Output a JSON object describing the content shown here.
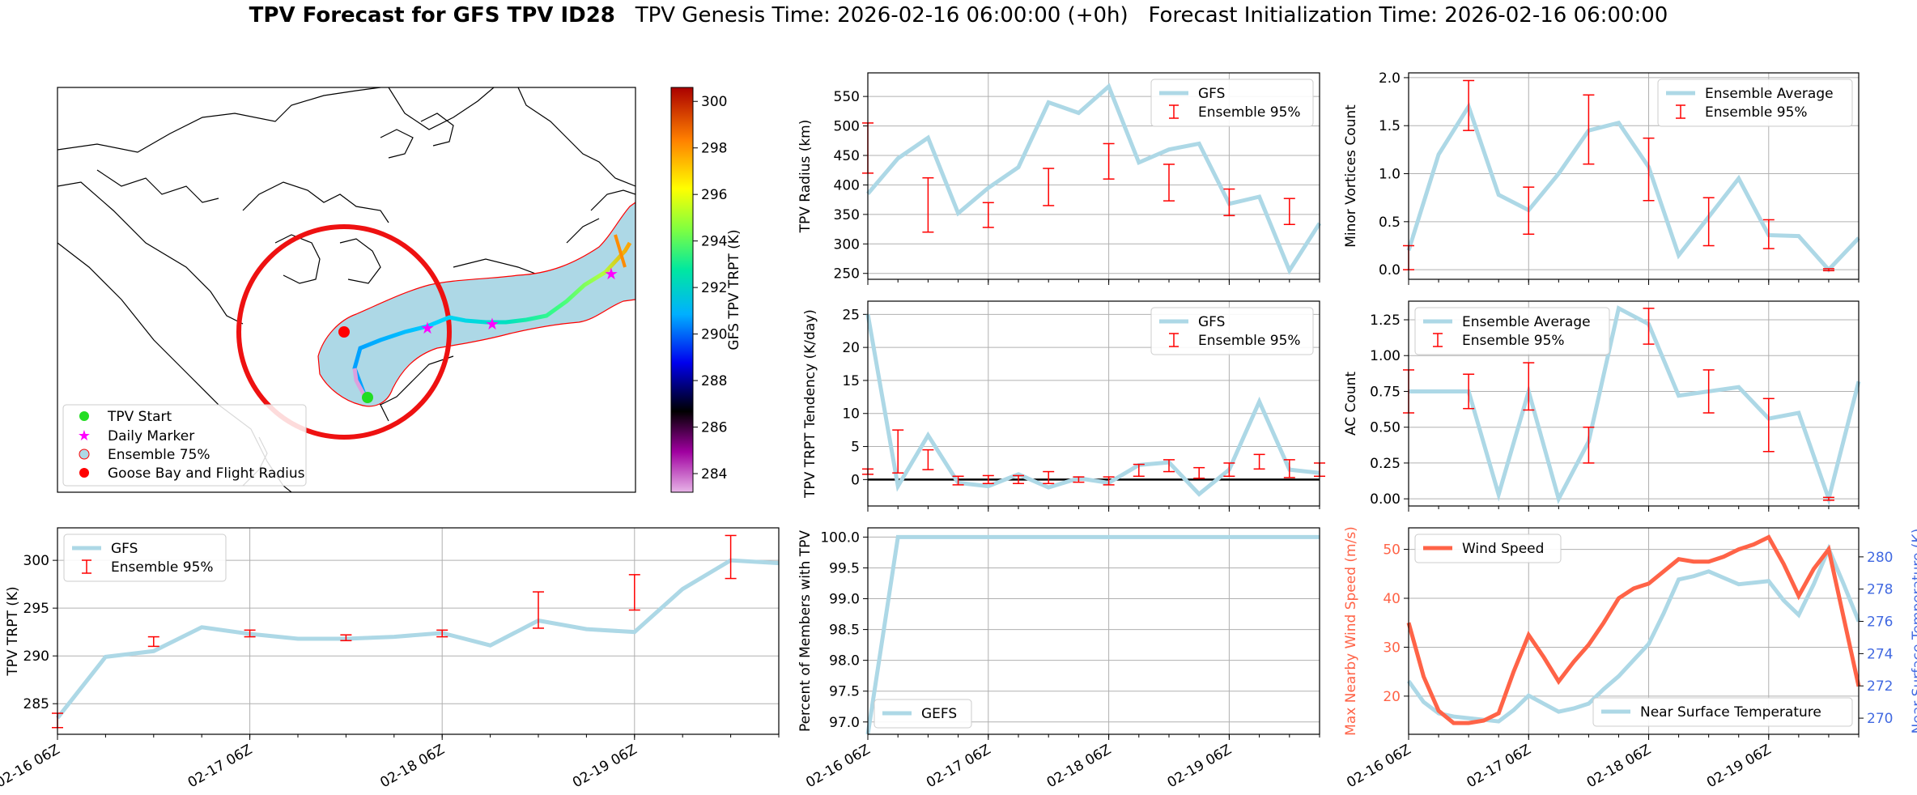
{
  "title": {
    "bold": "TPV Forecast for GFS TPV ID28",
    "genesis": "TPV Genesis Time: 2026-02-16 06:00:00 (+0h)",
    "init": "Forecast Initialization Time: 2026-02-16 06:00:00"
  },
  "colors": {
    "gfs_line": "#add8e6",
    "error_bar": "#ff0000",
    "wind": "#ff6347",
    "temp_axis": "#4169e1",
    "circle": "#ee1111",
    "fill": "#add8e6"
  },
  "time_ticks": [
    "02-16 06Z",
    "02-17 06Z",
    "02-18 06Z",
    "02-19 06Z"
  ],
  "map": {
    "colorbar_label": "GFS TPV TRPT (K)",
    "colorbar_ticks": [
      "284",
      "286",
      "288",
      "290",
      "292",
      "294",
      "296",
      "298",
      "300"
    ],
    "colorbar_range": [
      283.2,
      300.6
    ],
    "legend": [
      "TPV Start",
      "Daily Marker",
      "Ensemble 75%",
      "Goose Bay and Flight Radius"
    ]
  },
  "chart_data": [
    {
      "id": "radius",
      "type": "line",
      "ylabel": "TPV Radius (km)",
      "ylim": [
        240,
        590
      ],
      "yticks": [
        "250",
        "300",
        "350",
        "400",
        "450",
        "500",
        "550"
      ],
      "legend": [
        "GFS",
        "Ensemble 95%"
      ],
      "x": [
        0,
        0.25,
        0.5,
        0.75,
        1,
        1.25,
        1.5,
        1.75,
        2,
        2.25,
        2.5,
        2.75,
        3,
        3.25,
        3.5,
        3.75
      ],
      "series": [
        {
          "name": "GFS",
          "values": [
            385,
            445,
            480,
            352,
            395,
            430,
            540,
            522,
            567,
            438,
            460,
            470,
            368,
            380,
            255,
            335
          ]
        }
      ],
      "error_bars": [
        {
          "x": 0,
          "low": 420,
          "high": 505
        },
        {
          "x": 0.5,
          "low": 320,
          "high": 412
        },
        {
          "x": 1,
          "low": 328,
          "high": 370
        },
        {
          "x": 1.5,
          "low": 365,
          "high": 428
        },
        {
          "x": 2,
          "low": 410,
          "high": 470
        },
        {
          "x": 2.5,
          "low": 373,
          "high": 435
        },
        {
          "x": 3,
          "low": 348,
          "high": 393
        },
        {
          "x": 3.5,
          "low": 333,
          "high": 377
        }
      ]
    },
    {
      "id": "minor",
      "type": "line",
      "ylabel": "Minor Vortices Count",
      "ylim": [
        -0.1,
        2.05
      ],
      "yticks": [
        "0.0",
        "0.5",
        "1.0",
        "1.5",
        "2.0"
      ],
      "legend": [
        "Ensemble Average",
        "Ensemble 95%"
      ],
      "x": [
        0,
        0.25,
        0.5,
        0.75,
        1,
        1.25,
        1.5,
        1.75,
        2,
        2.25,
        2.5,
        2.75,
        3,
        3.25,
        3.5,
        3.75
      ],
      "series": [
        {
          "name": "Ensemble Average",
          "values": [
            0.2,
            1.2,
            1.7,
            0.78,
            0.62,
            1.0,
            1.45,
            1.53,
            1.07,
            0.15,
            0.55,
            0.95,
            0.36,
            0.35,
            0.0,
            0.33
          ]
        }
      ],
      "error_bars": [
        {
          "x": 0,
          "low": 0.0,
          "high": 0.25
        },
        {
          "x": 0.5,
          "low": 1.45,
          "high": 1.97
        },
        {
          "x": 1,
          "low": 0.37,
          "high": 0.86
        },
        {
          "x": 1.5,
          "low": 1.1,
          "high": 1.82
        },
        {
          "x": 2,
          "low": 0.72,
          "high": 1.37
        },
        {
          "x": 2.5,
          "low": 0.25,
          "high": 0.75
        },
        {
          "x": 3,
          "low": 0.22,
          "high": 0.52
        },
        {
          "x": 3.5,
          "low": -0.01,
          "high": 0.01
        }
      ]
    },
    {
      "id": "tendency",
      "type": "line",
      "ylabel": "TPV TRPT Tendency (K/day)",
      "ylim": [
        -4,
        27
      ],
      "yticks": [
        "0",
        "5",
        "10",
        "15",
        "20",
        "25"
      ],
      "legend": [
        "GFS",
        "Ensemble 95%"
      ],
      "x": [
        0,
        0.25,
        0.5,
        0.75,
        1,
        1.25,
        1.5,
        1.75,
        2,
        2.25,
        2.5,
        2.75,
        3,
        3.25,
        3.5,
        3.75
      ],
      "series": [
        {
          "name": "GFS",
          "values": [
            25,
            -1,
            6.7,
            -0.5,
            -1,
            0.8,
            -1.2,
            0.2,
            -0.5,
            2.2,
            2.6,
            -2.2,
            1.5,
            11.8,
            1.5,
            1.0
          ]
        }
      ],
      "error_bars": [
        {
          "x": 0,
          "low": 0.8,
          "high": 1.6
        },
        {
          "x": 0.25,
          "low": 1.0,
          "high": 7.5
        },
        {
          "x": 0.5,
          "low": 1.5,
          "high": 4.5
        },
        {
          "x": 0.75,
          "low": -0.8,
          "high": 0.5
        },
        {
          "x": 1,
          "low": -0.6,
          "high": 0.6
        },
        {
          "x": 1.25,
          "low": -0.6,
          "high": 0.6
        },
        {
          "x": 1.5,
          "low": -0.6,
          "high": 1.2
        },
        {
          "x": 1.75,
          "low": -0.4,
          "high": 0.4
        },
        {
          "x": 2,
          "low": -0.8,
          "high": 0.4
        },
        {
          "x": 2.25,
          "low": 0.5,
          "high": 2.3
        },
        {
          "x": 2.5,
          "low": 1.2,
          "high": 3.0
        },
        {
          "x": 2.75,
          "low": 0.2,
          "high": 1.8
        },
        {
          "x": 3,
          "low": 0.5,
          "high": 2.5
        },
        {
          "x": 3.25,
          "low": 1.6,
          "high": 3.8
        },
        {
          "x": 3.5,
          "low": 0.3,
          "high": 3.0
        },
        {
          "x": 3.75,
          "low": 0.5,
          "high": 2.5
        }
      ]
    },
    {
      "id": "ac",
      "type": "line",
      "ylabel": "AC Count",
      "ylim": [
        -0.05,
        1.38
      ],
      "yticks": [
        "0.00",
        "0.25",
        "0.50",
        "0.75",
        "1.00",
        "1.25"
      ],
      "legend": [
        "Ensemble Average",
        "Ensemble 95%"
      ],
      "x": [
        0,
        0.25,
        0.5,
        0.75,
        1,
        1.25,
        1.5,
        1.75,
        2,
        2.25,
        2.5,
        2.75,
        3,
        3.25,
        3.5,
        3.75
      ],
      "series": [
        {
          "name": "Ensemble Average",
          "values": [
            0.75,
            0.75,
            0.75,
            0.03,
            0.75,
            0.0,
            0.4,
            1.33,
            1.22,
            0.72,
            0.75,
            0.78,
            0.56,
            0.6,
            0.0,
            0.82
          ]
        }
      ],
      "error_bars": [
        {
          "x": 0,
          "low": 0.6,
          "high": 0.9
        },
        {
          "x": 0.5,
          "low": 0.63,
          "high": 0.87
        },
        {
          "x": 1,
          "low": 0.62,
          "high": 0.95
        },
        {
          "x": 1.5,
          "low": 0.25,
          "high": 0.5
        },
        {
          "x": 2,
          "low": 1.08,
          "high": 1.33
        },
        {
          "x": 2.5,
          "low": 0.6,
          "high": 0.9
        },
        {
          "x": 3,
          "low": 0.33,
          "high": 0.7
        },
        {
          "x": 3.5,
          "low": -0.01,
          "high": 0.01
        }
      ]
    },
    {
      "id": "trpt",
      "type": "line",
      "ylabel": "TPV TRPT (K)",
      "ylim": [
        281.8,
        303.4
      ],
      "yticks": [
        "285",
        "290",
        "295",
        "300"
      ],
      "legend": [
        "GFS",
        "Ensemble 95%"
      ],
      "x": [
        0,
        0.25,
        0.5,
        0.75,
        1,
        1.25,
        1.5,
        1.75,
        2,
        2.25,
        2.5,
        2.75,
        3,
        3.25,
        3.5,
        3.75
      ],
      "series": [
        {
          "name": "GFS",
          "values": [
            283.5,
            289.9,
            290.5,
            293.0,
            292.3,
            291.8,
            291.8,
            292.0,
            292.4,
            291.1,
            293.7,
            292.8,
            292.5,
            297.0,
            300.0,
            299.7
          ]
        }
      ],
      "error_bars": [
        {
          "x": 0,
          "low": 282.5,
          "high": 284.0
        },
        {
          "x": 0.5,
          "low": 291.0,
          "high": 292.0
        },
        {
          "x": 1,
          "low": 292.0,
          "high": 292.7
        },
        {
          "x": 1.5,
          "low": 291.6,
          "high": 292.2
        },
        {
          "x": 2,
          "low": 292.0,
          "high": 292.7
        },
        {
          "x": 2.5,
          "low": 292.9,
          "high": 296.7
        },
        {
          "x": 3,
          "low": 294.8,
          "high": 298.5
        },
        {
          "x": 3.5,
          "low": 298.1,
          "high": 302.6
        }
      ]
    },
    {
      "id": "percent",
      "type": "line",
      "ylabel": "Percent of Members with TPV",
      "ylim": [
        96.8,
        100.15
      ],
      "yticks": [
        "97.0",
        "97.5",
        "98.0",
        "98.5",
        "99.0",
        "99.5",
        "100.0"
      ],
      "legend": [
        "GEFS"
      ],
      "x": [
        0,
        0.25,
        0.5,
        0.75,
        1,
        1.25,
        1.5,
        1.75,
        2,
        2.25,
        2.5,
        2.75,
        3,
        3.25,
        3.5,
        3.75
      ],
      "series": [
        {
          "name": "GEFS",
          "values": [
            96.8,
            100,
            100,
            100,
            100,
            100,
            100,
            100,
            100,
            100,
            100,
            100,
            100,
            100,
            100,
            100
          ]
        }
      ]
    },
    {
      "id": "wind",
      "type": "line",
      "ylabel": "Max Nearby Wind Speed (m/s)",
      "ylim": [
        12.2,
        54.4
      ],
      "yticks": [
        "20",
        "30",
        "40",
        "50"
      ],
      "ylabel_right": "Near Surface Temperature (K)",
      "ylim_right": [
        269.0,
        281.8
      ],
      "yticks_right": [
        "270",
        "272",
        "274",
        "276",
        "278",
        "280"
      ],
      "legend": [
        "Wind Speed",
        "Near Surface Temperature"
      ],
      "x": [
        0,
        0.125,
        0.25,
        0.375,
        0.5,
        0.625,
        0.75,
        0.875,
        1,
        1.125,
        1.25,
        1.375,
        1.5,
        1.625,
        1.75,
        1.875,
        2,
        2.125,
        2.25,
        2.375,
        2.5,
        2.625,
        2.75,
        2.875,
        3,
        3.125,
        3.25,
        3.375,
        3.5,
        3.625,
        3.75
      ],
      "series": [
        {
          "name": "Wind Speed",
          "values": [
            35,
            24,
            17,
            14.5,
            14.5,
            15,
            16.5,
            25,
            32.5,
            28,
            23,
            27,
            30.5,
            35,
            40,
            42,
            43,
            45.5,
            48,
            47.5,
            47.5,
            48.5,
            50,
            51,
            52.5,
            47,
            40.5,
            46,
            50,
            36,
            22
          ]
        },
        {
          "name": "Near Surface Temperature",
          "values": [
            272.3,
            271.0,
            270.3,
            270.1,
            270.0,
            269.9,
            269.8,
            270.5,
            271.4,
            270.9,
            270.4,
            270.6,
            270.9,
            271.8,
            272.6,
            273.6,
            274.6,
            276.5,
            278.6,
            278.8,
            279.1,
            278.7,
            278.3,
            278.4,
            278.5,
            277.3,
            276.4,
            278.3,
            280.5,
            278.3,
            276.0
          ]
        }
      ]
    }
  ]
}
